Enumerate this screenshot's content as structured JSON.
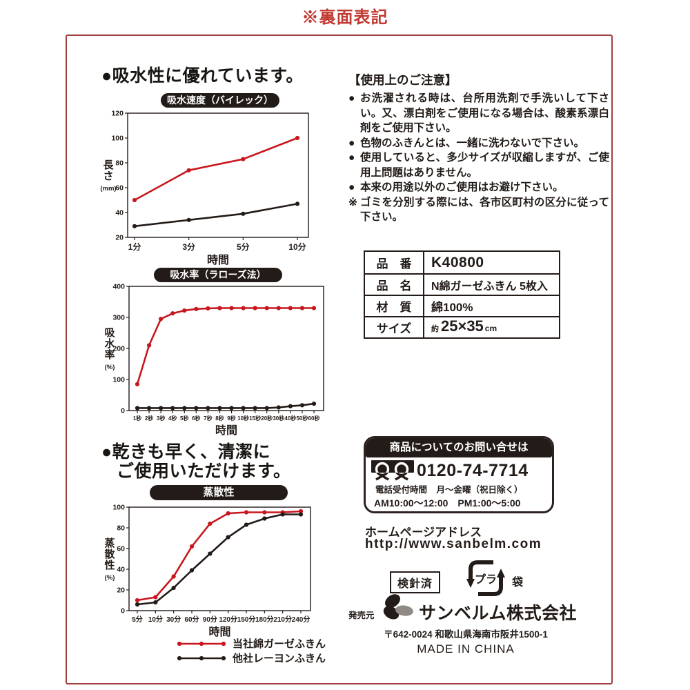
{
  "page": {
    "title": "※裏面表記"
  },
  "colors": {
    "accent_red": "#c8161e",
    "ink_black": "#221b17",
    "title_red": "#c13a32",
    "frame_red": "#a04040"
  },
  "left": {
    "heading1": "●吸水性に優れています。",
    "heading2_line1": "●乾きも早く、清潔に",
    "heading2_line2": "ご使用いただけます。"
  },
  "chart_data": [
    {
      "type": "line",
      "title": "吸水速度（バイレック）",
      "xlabel": "時間",
      "ylabel": "長さ",
      "ylabel_unit": "(mm)",
      "categories": [
        "1分",
        "3分",
        "5分",
        "10分"
      ],
      "ylim": [
        20,
        120
      ],
      "yticks": [
        20,
        40,
        60,
        80,
        100,
        120
      ],
      "grid": false,
      "legend_position": "none",
      "series": [
        {
          "name": "当社綿ガーゼふきん",
          "color": "#c8161e",
          "values": [
            50,
            74,
            83,
            100
          ]
        },
        {
          "name": "他社レーヨンふきん",
          "color": "#221b17",
          "values": [
            29,
            34,
            39,
            47
          ]
        }
      ],
      "margins": {
        "l": 40,
        "r": 12,
        "t": 8,
        "b": 46
      },
      "x_inset": [
        10,
        16
      ],
      "xtick_font": 12,
      "ytick_font": 10.5
    },
    {
      "type": "line",
      "title": "吸水率（ラローズ法）",
      "xlabel": "時間",
      "ylabel": "吸水率",
      "ylabel_unit": "(%)",
      "categories": [
        "1秒",
        "2秒",
        "3秒",
        "4秒",
        "5秒",
        "6秒",
        "7秒",
        "8秒",
        "9秒",
        "10秒",
        "15秒",
        "20秒",
        "30秒",
        "40秒",
        "50秒",
        "60秒"
      ],
      "ylim": [
        0,
        400
      ],
      "yticks": [
        0,
        100,
        200,
        300,
        400
      ],
      "grid": false,
      "legend_position": "none",
      "series": [
        {
          "name": "当社綿ガーゼふきん",
          "color": "#c8161e",
          "values": [
            85,
            210,
            295,
            313,
            322,
            327,
            329,
            330,
            330,
            330,
            330,
            330,
            330,
            330,
            330,
            330
          ]
        },
        {
          "name": "他社レーヨンふきん",
          "color": "#221b17",
          "values": [
            8,
            8,
            8,
            8,
            8,
            8,
            8,
            8,
            8,
            8,
            8,
            8,
            10,
            14,
            17,
            22
          ]
        }
      ],
      "margins": {
        "l": 38,
        "r": 10,
        "t": 8,
        "b": 48
      },
      "x_inset": [
        12,
        14
      ],
      "xtick_font": 8,
      "ytick_font": 10.5
    },
    {
      "type": "line",
      "title": "蒸散性",
      "xlabel": "時間",
      "ylabel": "蒸散性",
      "ylabel_unit": "(%)",
      "categories": [
        "5分",
        "10分",
        "30分",
        "60分",
        "90分",
        "120分",
        "150分",
        "180分",
        "210分",
        "240分"
      ],
      "ylim": [
        0,
        100
      ],
      "yticks": [
        0,
        20,
        40,
        60,
        80,
        100
      ],
      "grid": false,
      "legend_position": "below",
      "series": [
        {
          "name": "当社綿ガーゼふきん",
          "color": "#c8161e",
          "values": [
            10,
            13,
            33,
            62,
            84,
            94,
            95,
            95,
            95,
            96
          ]
        },
        {
          "name": "他社レーヨンふきん",
          "color": "#221b17",
          "values": [
            6,
            8,
            22,
            39,
            55,
            71,
            83,
            89,
            93,
            93
          ]
        }
      ],
      "margins": {
        "l": 38,
        "r": 11,
        "t": 8,
        "b": 42
      },
      "x_inset": [
        12,
        14
      ],
      "xtick_font": 10,
      "ytick_font": 10.5
    }
  ],
  "legend": {
    "items": [
      {
        "label": "当社綿ガーゼふきん",
        "color": "#c8161e"
      },
      {
        "label": "他社レーヨンふきん",
        "color": "#221b17"
      }
    ]
  },
  "notes": {
    "heading": "【使用上のご注意】",
    "items": [
      {
        "mark": "●",
        "text": "お洗濯される時は、台所用洗剤で手洗いして下さい。又、漂白剤をご使用になる場合は、酸素系漂白剤をご使用下さい。"
      },
      {
        "mark": "●",
        "text": "色物のふきんとは、一緒に洗わないで下さい。"
      },
      {
        "mark": "●",
        "text": "使用していると、多少サイズが収縮しますが、ご使用上問題はありません。"
      },
      {
        "mark": "●",
        "text": "本来の用途以外のご使用はお避け下さい。"
      },
      {
        "mark": "※",
        "text": "ゴミを分別する際には、各市区町村の区分に従って下さい。"
      }
    ]
  },
  "spec_table": {
    "rows": [
      {
        "label": "品　番",
        "value": "K40800"
      },
      {
        "label": "品　名",
        "value": "N綿ガーゼふきん 5枚入"
      },
      {
        "label": "材　質",
        "value": "綿100%"
      },
      {
        "label": "サイズ",
        "value": "約25×35cm"
      }
    ],
    "size_parts": {
      "prefix": "約",
      "dims": "25×35",
      "unit": "cm"
    }
  },
  "contact": {
    "header": "商品についてのお問い合せは",
    "phone": "0120-74-7714",
    "hours_label": "電話受付時間",
    "hours_days": "月〜金曜（祝日除く）",
    "hours_time": "AM10:00〜12:00　PM1:00〜5:00",
    "homepage_label": "ホームページアドレス",
    "homepage_url": "http://www.sanbelm.com"
  },
  "footer": {
    "kenshin": "検針済",
    "pla_mark_text": "プラ",
    "pla_bag": "袋",
    "seller_label": "発売元",
    "company": "サンベルム株式会社",
    "address": "〒642-0024 和歌山県海南市阪井1500-1",
    "made_in": "MADE IN CHINA"
  }
}
